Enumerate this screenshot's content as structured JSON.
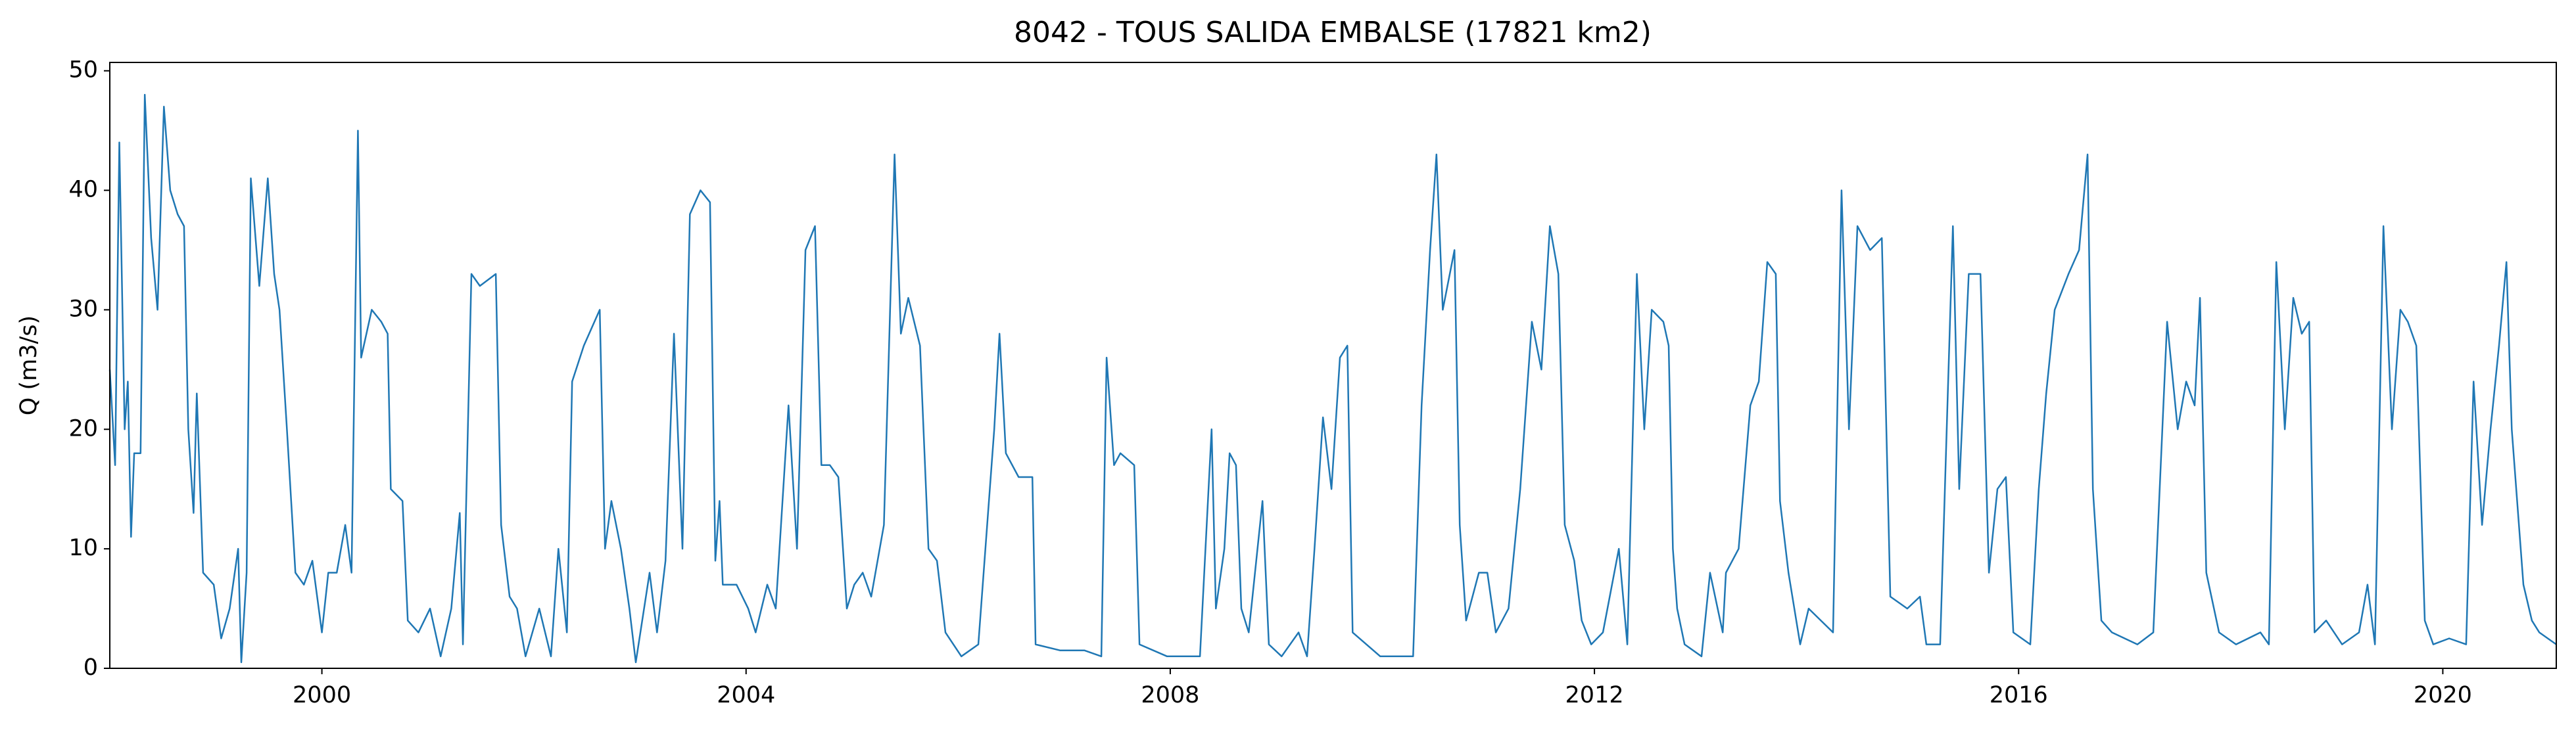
{
  "chart_data": {
    "type": "line",
    "title": "8042 - TOUS SALIDA EMBALSE (17821 km2)",
    "ylabel": "Q (m3/s)",
    "color": "#1f77b4",
    "xlim": [
      1998,
      2021.07
    ],
    "ylim": [
      0,
      50.7
    ],
    "xticks": [
      2000,
      2004,
      2008,
      2012,
      2016,
      2020
    ],
    "yticks": [
      0,
      10,
      20,
      30,
      40,
      50
    ],
    "x": [
      1998.0,
      1998.05,
      1998.09,
      1998.14,
      1998.17,
      1998.2,
      1998.23,
      1998.29,
      1998.33,
      1998.39,
      1998.45,
      1998.51,
      1998.57,
      1998.64,
      1998.7,
      1998.74,
      1998.79,
      1998.82,
      1998.88,
      1998.98,
      1999.05,
      1999.13,
      1999.21,
      1999.24,
      1999.29,
      1999.33,
      1999.41,
      1999.49,
      1999.55,
      1999.6,
      1999.67,
      1999.75,
      1999.83,
      1999.91,
      2000.0,
      2000.06,
      2000.14,
      2000.22,
      2000.28,
      2000.34,
      2000.37,
      2000.47,
      2000.56,
      2000.62,
      2000.65,
      2000.76,
      2000.81,
      2000.91,
      2001.02,
      2001.12,
      2001.22,
      2001.3,
      2001.33,
      2001.41,
      2001.49,
      2001.64,
      2001.69,
      2001.77,
      2001.84,
      2001.92,
      2002.05,
      2002.16,
      2002.23,
      2002.31,
      2002.36,
      2002.47,
      2002.62,
      2002.67,
      2002.73,
      2002.82,
      2002.9,
      2002.96,
      2003.09,
      2003.16,
      2003.24,
      2003.32,
      2003.4,
      2003.47,
      2003.57,
      2003.66,
      2003.71,
      2003.75,
      2003.78,
      2003.91,
      2004.02,
      2004.09,
      2004.2,
      2004.28,
      2004.4,
      2004.48,
      2004.56,
      2004.65,
      2004.71,
      2004.79,
      2004.87,
      2004.95,
      2005.02,
      2005.1,
      2005.18,
      2005.3,
      2005.4,
      2005.46,
      2005.53,
      2005.64,
      2005.72,
      2005.8,
      2005.88,
      2006.03,
      2006.19,
      2006.34,
      2006.39,
      2006.45,
      2006.57,
      2006.7,
      2006.73,
      2006.96,
      2007.19,
      2007.35,
      2007.4,
      2007.47,
      2007.53,
      2007.66,
      2007.71,
      2007.97,
      2008.28,
      2008.39,
      2008.43,
      2008.51,
      2008.56,
      2008.62,
      2008.67,
      2008.74,
      2008.87,
      2008.93,
      2009.05,
      2009.21,
      2009.29,
      2009.36,
      2009.44,
      2009.52,
      2009.6,
      2009.67,
      2009.72,
      2009.98,
      2010.29,
      2010.37,
      2010.45,
      2010.51,
      2010.57,
      2010.68,
      2010.73,
      2010.79,
      2010.91,
      2010.99,
      2011.07,
      2011.19,
      2011.3,
      2011.41,
      2011.5,
      2011.58,
      2011.66,
      2011.72,
      2011.81,
      2011.88,
      2011.97,
      2012.08,
      2012.23,
      2012.31,
      2012.4,
      2012.47,
      2012.54,
      2012.65,
      2012.7,
      2012.74,
      2012.78,
      2012.85,
      2013.01,
      2013.09,
      2013.21,
      2013.24,
      2013.36,
      2013.47,
      2013.55,
      2013.63,
      2013.71,
      2013.75,
      2013.83,
      2013.94,
      2014.02,
      2014.25,
      2014.33,
      2014.4,
      2014.48,
      2014.6,
      2014.71,
      2014.79,
      2014.95,
      2015.07,
      2015.13,
      2015.26,
      2015.38,
      2015.44,
      2015.53,
      2015.64,
      2015.72,
      2015.8,
      2015.88,
      2015.95,
      2016.11,
      2016.19,
      2016.26,
      2016.34,
      2016.47,
      2016.57,
      2016.65,
      2016.7,
      2016.78,
      2016.88,
      2017.12,
      2017.27,
      2017.4,
      2017.5,
      2017.58,
      2017.66,
      2017.71,
      2017.77,
      2017.89,
      2018.05,
      2018.28,
      2018.36,
      2018.43,
      2018.51,
      2018.59,
      2018.67,
      2018.74,
      2018.79,
      2018.9,
      2019.05,
      2019.21,
      2019.29,
      2019.36,
      2019.44,
      2019.52,
      2019.6,
      2019.67,
      2019.75,
      2019.83,
      2019.91,
      2020.06,
      2020.22,
      2020.29,
      2020.37,
      2020.45,
      2020.53,
      2020.6,
      2020.65,
      2020.76,
      2020.84,
      2020.91,
      2021.07
    ],
    "values": [
      25,
      17,
      44,
      20,
      24,
      11,
      18,
      18,
      48,
      36,
      30,
      47,
      40,
      38,
      37,
      20,
      13,
      23,
      8,
      7,
      2.5,
      5,
      10,
      0.5,
      8,
      41,
      32,
      41,
      33,
      30,
      20,
      8,
      7,
      9,
      3,
      8,
      8,
      12,
      8,
      45,
      26,
      30,
      29,
      28,
      15,
      14,
      4,
      3,
      5,
      1,
      5,
      13,
      2,
      33,
      32,
      33,
      12,
      6,
      5,
      1,
      5,
      1,
      10,
      3,
      24,
      27,
      30,
      10,
      14,
      10,
      5,
      0.5,
      8,
      3,
      9,
      28,
      10,
      38,
      40,
      39,
      9,
      14,
      7,
      7,
      5,
      3,
      7,
      5,
      22,
      10,
      35,
      37,
      17,
      17,
      16,
      5,
      7,
      8,
      6,
      12,
      43,
      28,
      31,
      27,
      10,
      9,
      3,
      1,
      2,
      20,
      28,
      18,
      16,
      16,
      2,
      1.5,
      1.5,
      1,
      26,
      17,
      18,
      17,
      2,
      1,
      1,
      20,
      5,
      10,
      18,
      17,
      5,
      3,
      14,
      2,
      1,
      3,
      1,
      10,
      21,
      15,
      26,
      27,
      3,
      1,
      1,
      22,
      35,
      43,
      30,
      35,
      12,
      4,
      8,
      8,
      3,
      5,
      15,
      29,
      25,
      37,
      33,
      12,
      9,
      4,
      2,
      3,
      10,
      2,
      33,
      20,
      30,
      29,
      27,
      10,
      5,
      2,
      1,
      8,
      3,
      8,
      10,
      22,
      24,
      34,
      33,
      14,
      8,
      2,
      5,
      3,
      40,
      20,
      37,
      35,
      36,
      6,
      5,
      6,
      2,
      2,
      37,
      15,
      33,
      33,
      8,
      15,
      16,
      3,
      2,
      15,
      23,
      30,
      33,
      35,
      43,
      15,
      4,
      3,
      2,
      3,
      29,
      20,
      24,
      22,
      31,
      8,
      3,
      2,
      3,
      2,
      34,
      20,
      31,
      28,
      29,
      3,
      4,
      2,
      3,
      7,
      2,
      37,
      20,
      30,
      29,
      27,
      4,
      2,
      2.5,
      2,
      24,
      12,
      20,
      27,
      34,
      20,
      7,
      4,
      3,
      2
    ]
  }
}
